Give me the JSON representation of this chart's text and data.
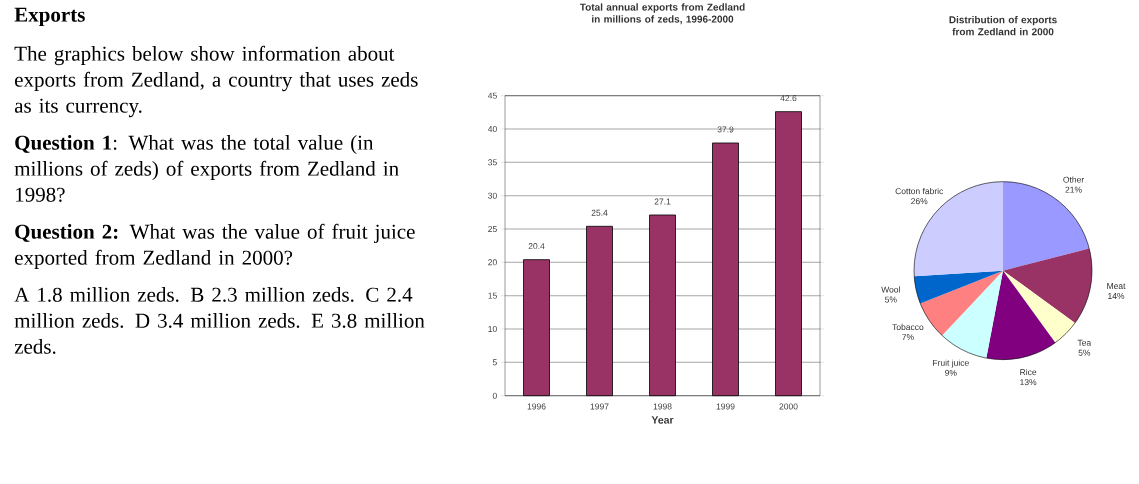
{
  "chart_data": [
    {
      "type": "other",
      "title": "Exports",
      "annotations": [
        "The graphics below show information about exports from Zedland, a country that uses zeds as its currency.",
        " **Question 1**: What was the total value (in millions of zeds) of exports from Zedland in 1998?",
        "**Question 2:** What was the value of fruit juice exported from Zedland in 2000?",
        "A 1.8 million zeds.    B 2.3 million zeds.    C 2.4 million zeds.    D 3.4 million zeds.    E 3.8 million zeds."
      ]
    },
    {
      "type": "bar",
      "title": "Total annual exports from Zedland in millions of zeds, 1996-2000",
      "xlabel": "Year",
      "categories": [
        "1996",
        "1997",
        "1998",
        "1999",
        "2000"
      ],
      "values": [
        20.4,
        25.4,
        27.1,
        37.9,
        42.6
      ],
      "color": "#993366",
      "ylim": [
        0,
        45
      ],
      "yticks": [
        0,
        5,
        10,
        15,
        20,
        25,
        30,
        35,
        40,
        45
      ],
      "grid": "y",
      "data_labels": true
    },
    {
      "type": "pie",
      "title": "Distribution of exports from Zedland in 2000",
      "categories": [
        "Other",
        "Meat",
        "Tea",
        "Rice",
        "Fruit juice",
        "Tobacco",
        "Wool",
        "Cotton fabric"
      ],
      "values": [
        21,
        14,
        5,
        13,
        9,
        7,
        5,
        26
      ],
      "colors": [
        "#9999ff",
        "#993366",
        "#ffffcc",
        "#800080",
        "#ccffff",
        "#ff8080",
        "#0066cc",
        "#ccccff"
      ],
      "value_labels": [
        "21%",
        "14%",
        "5%",
        "13%",
        "9%",
        "7%",
        "5%",
        "26%"
      ]
    }
  ]
}
